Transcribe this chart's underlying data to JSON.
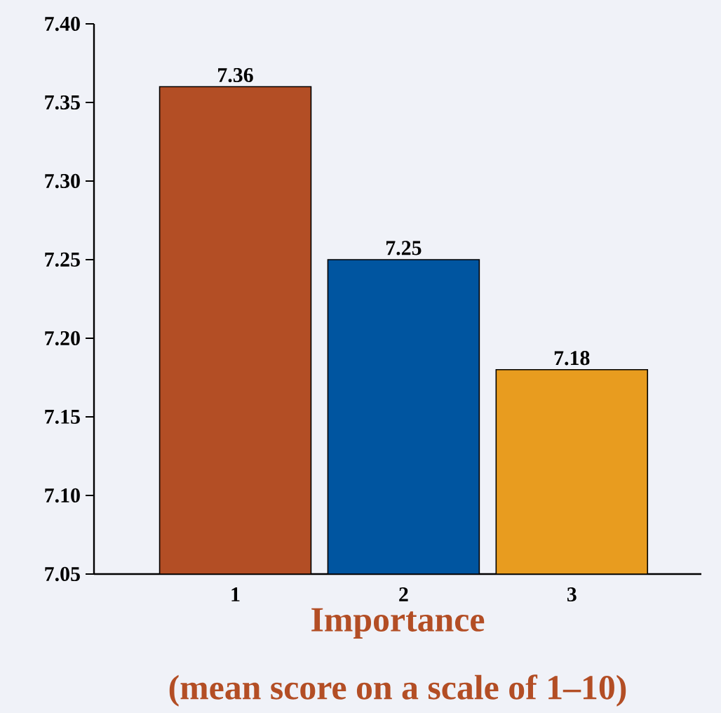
{
  "chart_data": {
    "type": "bar",
    "categories": [
      "1",
      "2",
      "3"
    ],
    "values": [
      7.36,
      7.25,
      7.18
    ],
    "colors": [
      "#b34e25",
      "#0055a0",
      "#e89c1f"
    ],
    "data_labels": true,
    "xlabel": "Importance",
    "annotations": [
      "(mean score on a scale of 1–10)"
    ],
    "ylim": [
      7.05,
      7.4
    ],
    "yticks": [
      {
        "value": 7.05,
        "label": "7.05"
      },
      {
        "value": 7.1,
        "label": "7.10"
      },
      {
        "value": 7.15,
        "label": "7.15"
      },
      {
        "value": 7.2,
        "label": "7.20"
      },
      {
        "value": 7.25,
        "label": "7.25"
      },
      {
        "value": 7.3,
        "label": "7.30"
      },
      {
        "value": 7.35,
        "label": "7.35"
      },
      {
        "value": 7.4,
        "label": "7.40"
      }
    ],
    "grid": false
  }
}
